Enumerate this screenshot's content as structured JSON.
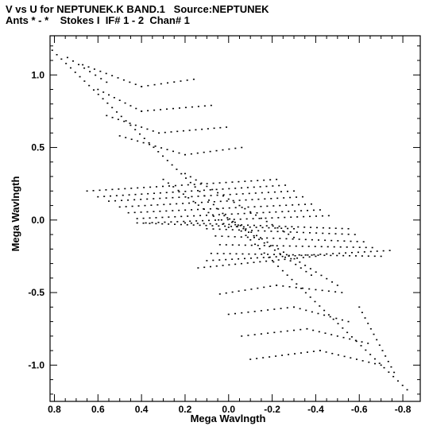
{
  "title": {
    "line1": "V vs U for NEPTUNEK.K BAND.1   Source:NEPTUNEK",
    "line2": "Ants * - *    Stokes I  IF# 1 - 2  Chan# 1"
  },
  "chart_data": {
    "type": "scatter",
    "xlabel": "Mega Wavlngth",
    "ylabel": "Mega Wavlngth",
    "xlim": [
      0.82,
      -0.88
    ],
    "ylim": [
      -1.25,
      1.27
    ],
    "xticks": [
      0.8,
      0.6,
      0.4,
      0.2,
      0.0,
      -0.2,
      -0.4,
      -0.6,
      -0.8
    ],
    "xtick_labels": [
      "0.8",
      "0.6",
      "0.4",
      "0.2",
      "0.0",
      "-0.2",
      "-0.4",
      "-0.6",
      "-0.8"
    ],
    "yticks": [
      1.0,
      0.5,
      0.0,
      -0.5,
      -1.0
    ],
    "ytick_labels": [
      "1.0",
      "0.5",
      "0.0",
      "-0.5",
      "-1.0"
    ],
    "grid": false,
    "marker_color": "#000000",
    "tracks": [
      {
        "from": [
          0.81,
          1.17
        ],
        "to": [
          -0.82,
          -1.17
        ]
      },
      {
        "from": [
          0.74,
          1.12
        ],
        "to": [
          0.56,
          0.95
        ]
      },
      {
        "from": [
          0.67,
          1.07
        ],
        "to": [
          0.4,
          0.92
        ]
      },
      {
        "from": [
          0.4,
          0.92
        ],
        "to": [
          0.16,
          0.97
        ]
      },
      {
        "from": [
          0.6,
          0.9
        ],
        "to": [
          0.4,
          0.75
        ]
      },
      {
        "from": [
          0.4,
          0.75
        ],
        "to": [
          0.08,
          0.79
        ]
      },
      {
        "from": [
          0.56,
          0.72
        ],
        "to": [
          0.32,
          0.6
        ]
      },
      {
        "from": [
          0.32,
          0.6
        ],
        "to": [
          0.01,
          0.64
        ]
      },
      {
        "from": [
          0.5,
          0.58
        ],
        "to": [
          0.2,
          0.45
        ]
      },
      {
        "from": [
          0.2,
          0.45
        ],
        "to": [
          -0.06,
          0.5
        ]
      },
      {
        "from": [
          0.65,
          0.2
        ],
        "to": [
          -0.22,
          0.28
        ]
      },
      {
        "from": [
          0.6,
          0.16
        ],
        "to": [
          -0.26,
          0.24
        ]
      },
      {
        "from": [
          0.55,
          0.13
        ],
        "to": [
          -0.3,
          0.2
        ]
      },
      {
        "from": [
          0.5,
          0.09
        ],
        "to": [
          -0.34,
          0.16
        ]
      },
      {
        "from": [
          0.46,
          0.05
        ],
        "to": [
          -0.38,
          0.11
        ]
      },
      {
        "from": [
          0.42,
          0.01
        ],
        "to": [
          -0.42,
          0.07
        ]
      },
      {
        "from": [
          0.38,
          -0.02
        ],
        "to": [
          -0.46,
          0.03
        ]
      },
      {
        "from": [
          0.3,
          0.28
        ],
        "to": [
          0.0,
          -0.05
        ]
      },
      {
        "from": [
          0.2,
          0.32
        ],
        "to": [
          -0.3,
          -0.12
        ]
      },
      {
        "from": [
          0.42,
          -0.02
        ],
        "to": [
          -0.3,
          -0.06
        ]
      },
      {
        "from": [
          0.2,
          -0.02
        ],
        "to": [
          -0.55,
          -0.06
        ]
      },
      {
        "from": [
          0.1,
          -0.06
        ],
        "to": [
          -0.58,
          -0.1
        ]
      },
      {
        "from": [
          0.06,
          -0.11
        ],
        "to": [
          -0.62,
          -0.15
        ]
      },
      {
        "from": [
          0.04,
          -0.17
        ],
        "to": [
          -0.66,
          -0.19
        ]
      },
      {
        "from": [
          0.08,
          -0.23
        ],
        "to": [
          -0.7,
          -0.25
        ]
      },
      {
        "from": [
          0.1,
          -0.28
        ],
        "to": [
          -0.74,
          -0.21
        ]
      },
      {
        "from": [
          0.14,
          -0.33
        ],
        "to": [
          -0.4,
          -0.25
        ]
      },
      {
        "from": [
          0.02,
          0.03
        ],
        "to": [
          -0.5,
          -0.45
        ]
      },
      {
        "from": [
          -0.02,
          -0.01
        ],
        "to": [
          -0.38,
          -0.38
        ]
      },
      {
        "from": [
          0.04,
          -0.51
        ],
        "to": [
          -0.22,
          -0.45
        ]
      },
      {
        "from": [
          -0.22,
          -0.45
        ],
        "to": [
          -0.52,
          -0.5
        ]
      },
      {
        "from": [
          0.0,
          -0.65
        ],
        "to": [
          -0.3,
          -0.6
        ]
      },
      {
        "from": [
          -0.3,
          -0.6
        ],
        "to": [
          -0.55,
          -0.7
        ]
      },
      {
        "from": [
          -0.06,
          -0.8
        ],
        "to": [
          -0.36,
          -0.75
        ]
      },
      {
        "from": [
          -0.36,
          -0.75
        ],
        "to": [
          -0.64,
          -0.85
        ]
      },
      {
        "from": [
          -0.1,
          -0.96
        ],
        "to": [
          -0.42,
          -0.9
        ]
      },
      {
        "from": [
          -0.42,
          -0.9
        ],
        "to": [
          -0.7,
          -1.0
        ]
      },
      {
        "from": [
          -0.6,
          -0.6
        ],
        "to": [
          -0.76,
          -1.05
        ]
      }
    ]
  }
}
